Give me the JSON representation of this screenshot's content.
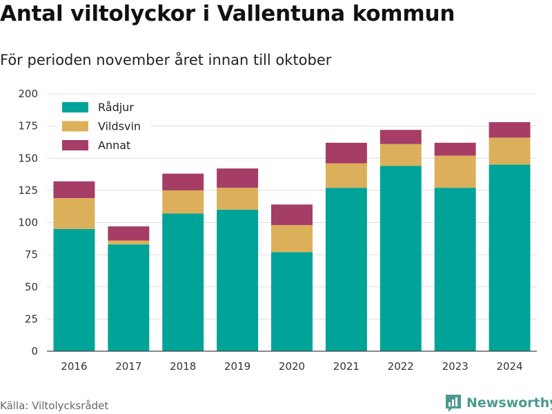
{
  "title": "Antal viltolyckor i Vallentuna kommun",
  "subtitle": "För perioden november året innan till oktober",
  "source": "Källa: Viltolycksrådet",
  "brand": "Newsworthy",
  "chart_data": {
    "type": "bar",
    "stacked": true,
    "categories": [
      "2016",
      "2017",
      "2018",
      "2019",
      "2020",
      "2021",
      "2022",
      "2023",
      "2024"
    ],
    "series": [
      {
        "name": "Rådjur",
        "color": "#00a398",
        "values": [
          95,
          83,
          107,
          110,
          77,
          127,
          144,
          127,
          145
        ]
      },
      {
        "name": "Vildsvin",
        "color": "#dcb05a",
        "values": [
          24,
          3,
          18,
          17,
          21,
          19,
          17,
          25,
          21
        ]
      },
      {
        "name": "Annat",
        "color": "#a63d67",
        "values": [
          13,
          11,
          13,
          15,
          16,
          16,
          11,
          10,
          12
        ]
      }
    ],
    "ylim": [
      0,
      200
    ],
    "yticks": [
      0,
      25,
      50,
      75,
      100,
      125,
      150,
      175,
      200
    ],
    "grid": true,
    "legend": "top-left"
  }
}
